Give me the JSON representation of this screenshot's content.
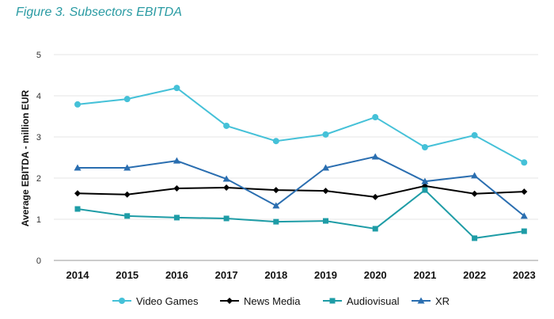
{
  "figure_title": "Figure 3. Subsectors EBITDA",
  "chart_data": {
    "type": "line",
    "title": "",
    "xlabel": "",
    "ylabel": "Average EBITDA - million EUR",
    "ylim": [
      0,
      5
    ],
    "yticks": [
      "0",
      "1",
      "2",
      "3",
      "4",
      "5"
    ],
    "grid": true,
    "legend": "bottom",
    "categories": [
      "2014",
      "2015",
      "2016",
      "2017",
      "2018",
      "2019",
      "2020",
      "2021",
      "2022",
      "2023"
    ],
    "series": [
      {
        "name": "Video Games",
        "color": "#45c1d8",
        "marker": "circle",
        "values": [
          3.79,
          3.92,
          4.19,
          3.27,
          2.9,
          3.06,
          3.48,
          2.75,
          3.04,
          2.38
        ]
      },
      {
        "name": "News Media",
        "color": "#000000",
        "marker": "diamond",
        "values": [
          1.63,
          1.6,
          1.75,
          1.77,
          1.71,
          1.69,
          1.54,
          1.81,
          1.62,
          1.67
        ]
      },
      {
        "name": "Audiovisual",
        "color": "#1e9ca6",
        "marker": "square",
        "values": [
          1.25,
          1.08,
          1.04,
          1.02,
          0.94,
          0.96,
          0.77,
          1.71,
          0.54,
          0.71
        ]
      },
      {
        "name": "XR",
        "color": "#2a6eb0",
        "marker": "triangle",
        "values": [
          2.25,
          2.25,
          2.42,
          1.98,
          1.33,
          2.25,
          2.52,
          1.92,
          2.06,
          1.08
        ]
      }
    ]
  }
}
